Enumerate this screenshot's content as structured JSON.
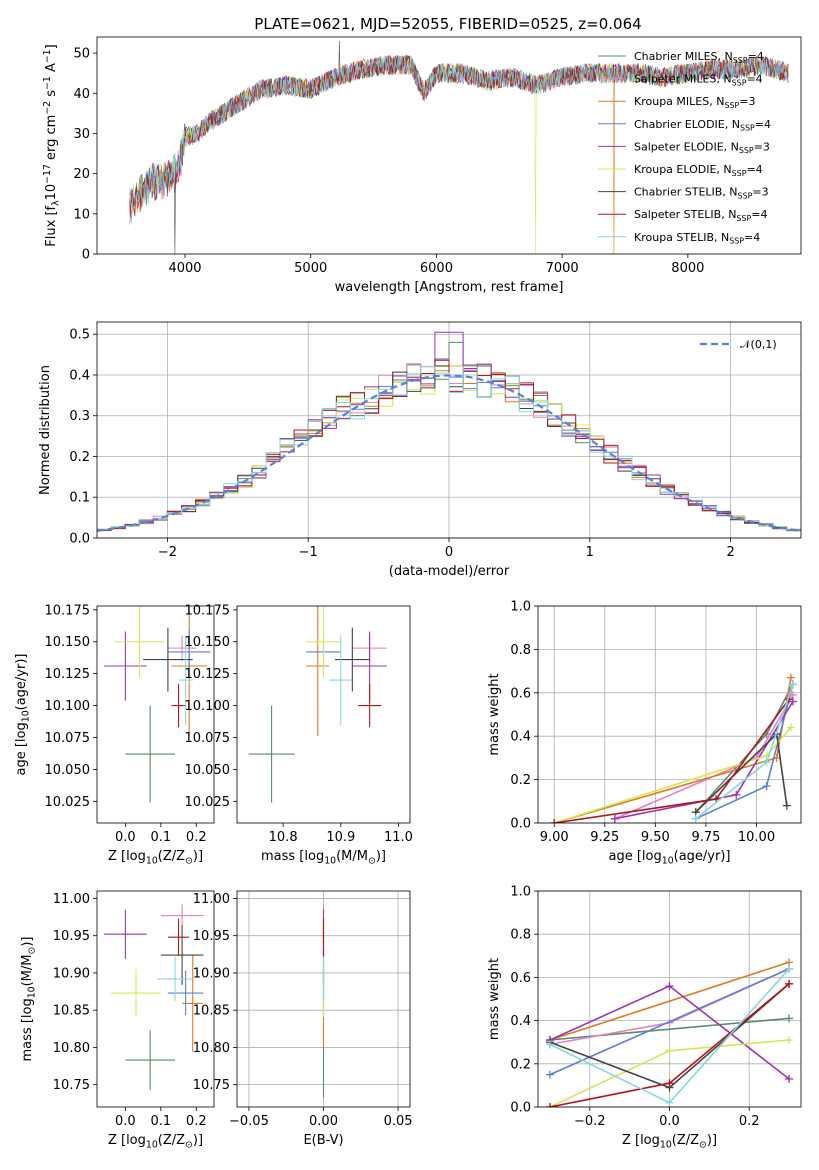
{
  "figure": {
    "title": "PLATE=0621, MJD=52055, FIBERID=0525, z=0.064"
  },
  "series": [
    {
      "name": "Chabrier MILES, N$_{SSP}$=4",
      "color": "#5a8a6a"
    },
    {
      "name": "Salpeter MILES, N$_{SSP}$=4",
      "color": "#e87fbf"
    },
    {
      "name": "Kroupa MILES, N$_{SSP}$=3",
      "color": "#e07b22"
    },
    {
      "name": "Chabrier ELODIE, N$_{SSP}$=4",
      "color": "#5b7fdc"
    },
    {
      "name": "Salpeter ELODIE, N$_{SSP}$=3",
      "color": "#9b34b8"
    },
    {
      "name": "Kroupa ELODIE, N$_{SSP}$=4",
      "color": "#d4e857"
    },
    {
      "name": "Chabrier STELIB, N$_{SSP}$=3",
      "color": "#444444"
    },
    {
      "name": "Salpeter STELIB, N$_{SSP}$=4",
      "color": "#b3151b"
    },
    {
      "name": "Kroupa STELIB, N$_{SSP}$=4",
      "color": "#86d8e0"
    }
  ],
  "chart_data": [
    {
      "id": "spectrum",
      "type": "line",
      "xlabel": "wavelength [Angstrom, rest frame]",
      "ylabel": "Flux [f$_\\lambda$10$^{-17}$ erg cm$^{-2}$ s$^{-1}$ A$^{-1}$]",
      "xlim": [
        3300,
        8900
      ],
      "ylim": [
        0,
        54
      ],
      "xticks": [
        4000,
        5000,
        6000,
        7000,
        8000
      ],
      "yticks": [
        0,
        10,
        20,
        30,
        40,
        50
      ],
      "legend": "top-right",
      "grid": false,
      "continuum": {
        "x": [
          3560,
          3700,
          3850,
          3950,
          4000,
          4100,
          4200,
          4300,
          4400,
          4500,
          4600,
          4800,
          5000,
          5200,
          5400,
          5600,
          5800,
          5900,
          6000,
          6200,
          6400,
          6600,
          6800,
          7000,
          7200,
          7400,
          7600,
          7800,
          8000,
          8200,
          8400,
          8600,
          8800
        ],
        "y": [
          12,
          17,
          19,
          21,
          29,
          30,
          33,
          35,
          37,
          39,
          41,
          42,
          41,
          44,
          46,
          47,
          47,
          40,
          45,
          45,
          43,
          44,
          42,
          44,
          45,
          45,
          45,
          44,
          45,
          46,
          46,
          47,
          45
        ]
      },
      "notes": "spectra of all 9 series overlap; drop-to-zero spikes near 3920, 6790 and 7410 Angstrom"
    },
    {
      "id": "residual-histogram",
      "type": "bar",
      "xlabel": "(data-model)/error",
      "ylabel": "Normed distribution",
      "xlim": [
        -2.5,
        2.5
      ],
      "ylim": [
        0,
        0.53
      ],
      "xticks": [
        -2,
        -1,
        0,
        1,
        2
      ],
      "yticks": [
        0.0,
        0.1,
        0.2,
        0.3,
        0.4,
        0.5
      ],
      "grid": true,
      "legend": "top-right",
      "reference": {
        "name": "$\\mathcal{N}(0,1)$",
        "color": "#5b7fdc"
      },
      "bin_width": 0.1
    },
    {
      "id": "age-vs-Z",
      "type": "scatter",
      "xlabel": "Z [log$_{10}$(Z/Z$_\\odot$)]",
      "ylabel": "age  [log$_{10}$(age/yr)]",
      "xlim": [
        -0.08,
        0.25
      ],
      "ylim": [
        10.008,
        10.178
      ],
      "xticks": [
        0.0,
        0.1,
        0.2
      ],
      "yticks": [
        10.025,
        10.05,
        10.075,
        10.1,
        10.125,
        10.15,
        10.175
      ],
      "points": [
        {
          "x": 0.07,
          "y": 10.062,
          "xerr": 0.07,
          "yerr": 0.038
        },
        {
          "x": 0.16,
          "y": 10.145,
          "xerr": 0.04,
          "yerr": 0.01
        },
        {
          "x": 0.18,
          "y": 10.131,
          "xerr": 0.05,
          "yerr": 0.055
        },
        {
          "x": 0.18,
          "y": 10.142,
          "xerr": 0.06,
          "yerr": 0.017
        },
        {
          "x": 0.0,
          "y": 10.131,
          "xerr": 0.06,
          "yerr": 0.027
        },
        {
          "x": 0.04,
          "y": 10.15,
          "xerr": 0.07,
          "yerr": 0.028
        },
        {
          "x": 0.12,
          "y": 10.136,
          "xerr": 0.07,
          "yerr": 0.025
        },
        {
          "x": 0.15,
          "y": 10.1,
          "xerr": 0.02,
          "yerr": 0.017
        },
        {
          "x": 0.17,
          "y": 10.12,
          "xerr": 0.02,
          "yerr": 0.035
        }
      ]
    },
    {
      "id": "age-vs-mass",
      "type": "scatter",
      "xlabel": "mass [log$_{10}$(M/M$_\\odot$)]",
      "ylabel": "",
      "xlim": [
        10.72,
        11.02
      ],
      "ylim": [
        10.008,
        10.178
      ],
      "xticks": [
        10.8,
        10.9,
        11.0
      ],
      "yticks": [
        10.025,
        10.05,
        10.075,
        10.1,
        10.125,
        10.15,
        10.175
      ],
      "points": [
        {
          "x": 10.78,
          "y": 10.062,
          "xerr": 0.04,
          "yerr": 0.038
        },
        {
          "x": 10.95,
          "y": 10.145,
          "xerr": 0.03,
          "yerr": 0.01
        },
        {
          "x": 10.86,
          "y": 10.131,
          "xerr": 0.02,
          "yerr": 0.055
        },
        {
          "x": 10.87,
          "y": 10.142,
          "xerr": 0.03,
          "yerr": 0.017
        },
        {
          "x": 10.95,
          "y": 10.131,
          "xerr": 0.03,
          "yerr": 0.027
        },
        {
          "x": 10.87,
          "y": 10.15,
          "xerr": 0.03,
          "yerr": 0.028
        },
        {
          "x": 10.92,
          "y": 10.136,
          "xerr": 0.03,
          "yerr": 0.025
        },
        {
          "x": 10.95,
          "y": 10.1,
          "xerr": 0.02,
          "yerr": 0.017
        },
        {
          "x": 10.9,
          "y": 10.12,
          "xerr": 0.02,
          "yerr": 0.035
        }
      ]
    },
    {
      "id": "mass-weight-vs-age",
      "type": "line",
      "xlabel": "age  [log$_{10}$(age/yr)]",
      "ylabel": "mass weight",
      "xlim": [
        8.92,
        10.22
      ],
      "ylim": [
        0.0,
        1.0
      ],
      "xticks": [
        9.0,
        9.25,
        9.5,
        9.75,
        10.0
      ],
      "yticks": [
        0.0,
        0.2,
        0.4,
        0.6,
        0.8,
        1.0
      ],
      "grid": true,
      "series": [
        {
          "x": [
            9.7,
            10.05,
            10.18
          ],
          "y": [
            0.05,
            0.41,
            0.64
          ]
        },
        {
          "x": [
            9.3,
            10.0,
            10.18
          ],
          "y": [
            0.02,
            0.3,
            0.59
          ]
        },
        {
          "x": [
            9.0,
            10.1,
            10.17
          ],
          "y": [
            0.0,
            0.3,
            0.67
          ]
        },
        {
          "x": [
            9.7,
            10.05,
            10.18
          ],
          "y": [
            0.02,
            0.17,
            0.64
          ]
        },
        {
          "x": [
            9.3,
            9.9,
            10.18
          ],
          "y": [
            0.02,
            0.13,
            0.56
          ]
        },
        {
          "x": [
            9.0,
            10.05,
            10.17
          ],
          "y": [
            0.0,
            0.31,
            0.44
          ]
        },
        {
          "x": [
            9.7,
            10.1,
            10.15
          ],
          "y": [
            0.05,
            0.41,
            0.08
          ]
        },
        {
          "x": [
            9.0,
            9.8,
            10.16
          ],
          "y": [
            0.0,
            0.11,
            0.57
          ]
        },
        {
          "x": [
            9.7,
            10.05,
            10.18
          ],
          "y": [
            0.02,
            0.28,
            0.64
          ]
        }
      ]
    },
    {
      "id": "mass-vs-Z",
      "type": "scatter",
      "xlabel": "Z [log$_{10}$(Z/Z$_\\odot$)]",
      "ylabel": "mass [log$_{10}$(M/M$_\\odot$)]",
      "xlim": [
        -0.08,
        0.25
      ],
      "ylim": [
        10.72,
        11.01
      ],
      "xticks": [
        0.0,
        0.1,
        0.2
      ],
      "yticks": [
        10.75,
        10.8,
        10.85,
        10.9,
        10.95,
        11.0
      ],
      "points": [
        {
          "x": 0.07,
          "y": 10.783,
          "xerr": 0.07,
          "yerr": 0.04
        },
        {
          "x": 0.16,
          "y": 10.977,
          "xerr": 0.06,
          "yerr": 0.015
        },
        {
          "x": 0.19,
          "y": 10.859,
          "xerr": 0.03,
          "yerr": 0.065
        },
        {
          "x": 0.17,
          "y": 10.873,
          "xerr": 0.05,
          "yerr": 0.03
        },
        {
          "x": 0.0,
          "y": 10.952,
          "xerr": 0.06,
          "yerr": 0.033
        },
        {
          "x": 0.03,
          "y": 10.873,
          "xerr": 0.07,
          "yerr": 0.032
        },
        {
          "x": 0.16,
          "y": 10.924,
          "xerr": 0.06,
          "yerr": 0.04
        },
        {
          "x": 0.15,
          "y": 10.948,
          "xerr": 0.03,
          "yerr": 0.025
        },
        {
          "x": 0.14,
          "y": 10.892,
          "xerr": 0.05,
          "yerr": 0.03
        }
      ]
    },
    {
      "id": "mass-vs-EBV",
      "type": "scatter",
      "xlabel": "E(B-V)",
      "ylabel": "",
      "xlim": [
        -0.058,
        0.058
      ],
      "ylim": [
        10.72,
        11.01
      ],
      "xticks": [
        -0.05,
        0.0,
        0.05
      ],
      "xticklabels": [
        "−0.05",
        "0.00",
        "0.05"
      ],
      "yticks": [
        10.75,
        10.8,
        10.85,
        10.9,
        10.95,
        11.0
      ],
      "grid": true,
      "points": [
        {
          "x": 0.0,
          "y": 10.783,
          "xerr": 0.0,
          "yerr": 0.05
        },
        {
          "x": 0.0,
          "y": 10.977,
          "xerr": 0.0,
          "yerr": 0.015
        },
        {
          "x": 0.0,
          "y": 10.859,
          "xerr": 0.0,
          "yerr": 0.06
        },
        {
          "x": 0.0,
          "y": 10.873,
          "xerr": 0.0,
          "yerr": 0.03
        },
        {
          "x": 0.0,
          "y": 10.952,
          "xerr": 0.0,
          "yerr": 0.033
        },
        {
          "x": 0.0,
          "y": 10.873,
          "xerr": 0.0,
          "yerr": 0.032
        },
        {
          "x": 0.0,
          "y": 10.924,
          "xerr": 0.0,
          "yerr": 0.04
        },
        {
          "x": 0.0,
          "y": 10.948,
          "xerr": 0.0,
          "yerr": 0.025
        },
        {
          "x": 0.0,
          "y": 10.892,
          "xerr": 0.0,
          "yerr": 0.03
        }
      ]
    },
    {
      "id": "mass-weight-vs-Z",
      "type": "line",
      "xlabel": "Z [log$_{10}$(Z/Z$_\\odot$)]",
      "ylabel": "mass weight",
      "xlim": [
        -0.33,
        0.33
      ],
      "ylim": [
        0.0,
        1.0
      ],
      "xticks": [
        -0.2,
        0.0,
        0.2
      ],
      "xticklabels": [
        "−0.2",
        "0.0",
        "0.2"
      ],
      "yticks": [
        0.0,
        0.2,
        0.4,
        0.6,
        0.8,
        1.0
      ],
      "grid": true,
      "series": [
        {
          "x": [
            -0.3,
            0.3
          ],
          "y": [
            0.31,
            0.41
          ]
        },
        {
          "x": [
            -0.3,
            0.0,
            0.3
          ],
          "y": [
            0.29,
            0.39,
            0.64
          ]
        },
        {
          "x": [
            -0.3,
            0.3
          ],
          "y": [
            0.31,
            0.67
          ]
        },
        {
          "x": [
            -0.3,
            0.3
          ],
          "y": [
            0.15,
            0.64
          ]
        },
        {
          "x": [
            -0.3,
            0.0,
            0.3
          ],
          "y": [
            0.31,
            0.56,
            0.13
          ]
        },
        {
          "x": [
            -0.3,
            0.0,
            0.3
          ],
          "y": [
            0.0,
            0.26,
            0.31
          ]
        },
        {
          "x": [
            -0.3,
            0.0,
            0.3
          ],
          "y": [
            0.3,
            0.09,
            0.57
          ]
        },
        {
          "x": [
            -0.3,
            0.0,
            0.3
          ],
          "y": [
            0.0,
            0.11,
            0.57
          ]
        },
        {
          "x": [
            -0.3,
            0.0,
            0.3
          ],
          "y": [
            0.29,
            0.02,
            0.64
          ]
        }
      ]
    }
  ]
}
